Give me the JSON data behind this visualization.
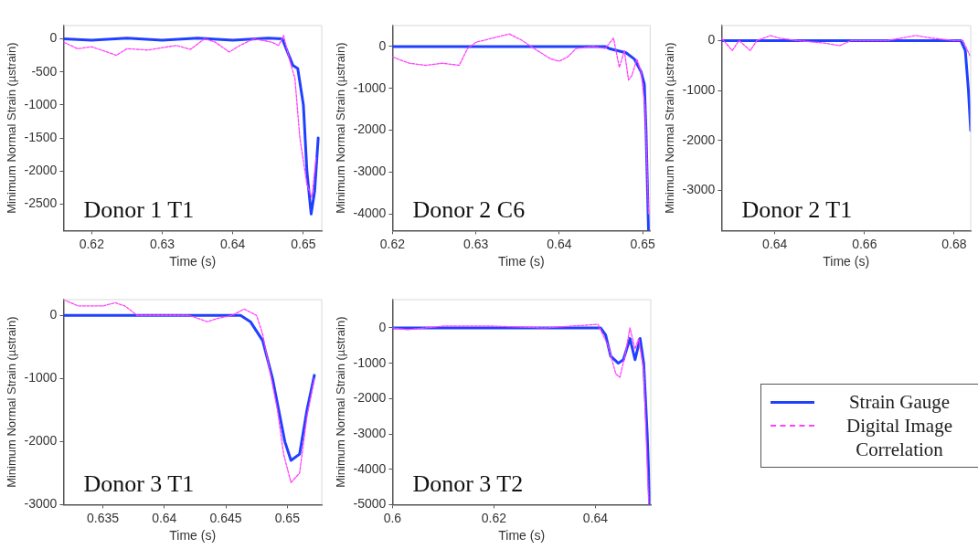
{
  "chart_data": [
    {
      "type": "line",
      "xlabel": "Time (s)",
      "ylabel": "Minimum Normal Strain (µstrain)",
      "annotations": [
        "Donor 1 T1"
      ],
      "xlim": [
        0.616,
        0.6526
      ],
      "xticks": [
        0.62,
        0.63,
        0.64,
        0.65
      ],
      "ylim": [
        -2900,
        200
      ],
      "yticks": [
        0,
        -500,
        -1000,
        -1500,
        -2000,
        -2500
      ],
      "grid": false,
      "legend": false,
      "marker": "none",
      "series": [
        {
          "color": "#2040ff",
          "line_style": "solid",
          "x": [
            0.616,
            0.62,
            0.625,
            0.63,
            0.635,
            0.64,
            0.645,
            0.647,
            0.6485,
            0.6492,
            0.65,
            0.6505,
            0.6511,
            0.6516,
            0.6521
          ],
          "values": [
            0,
            -20,
            10,
            -20,
            10,
            -20,
            10,
            0,
            -400,
            -450,
            -1000,
            -2000,
            -2650,
            -2300,
            -1500
          ]
        },
        {
          "color": "#ff40ff",
          "line_style": "dashed",
          "x": [
            0.616,
            0.618,
            0.62,
            0.6235,
            0.625,
            0.628,
            0.632,
            0.634,
            0.636,
            0.6375,
            0.6395,
            0.641,
            0.643,
            0.6455,
            0.6465,
            0.6472,
            0.648,
            0.6488,
            0.6495,
            0.6505,
            0.6512,
            0.6518
          ],
          "values": [
            -50,
            -150,
            -120,
            -250,
            -150,
            -170,
            -100,
            -160,
            0,
            -50,
            -200,
            -100,
            0,
            -50,
            -100,
            50,
            -300,
            -600,
            -1500,
            -2200,
            -2400,
            -1800
          ]
        }
      ]
    },
    {
      "type": "line",
      "xlabel": "Time (s)",
      "ylabel": "Minimum Normal Strain (µstrain)",
      "annotations": [
        "Donor 2 C6"
      ],
      "xlim": [
        0.62,
        0.6509
      ],
      "xticks": [
        0.62,
        0.63,
        0.64,
        0.65
      ],
      "ylim": [
        -4400,
        500
      ],
      "yticks": [
        0,
        -1000,
        -2000,
        -3000,
        -4000
      ],
      "grid": false,
      "legend": false,
      "marker": "none",
      "series": [
        {
          "color": "#2040ff",
          "line_style": "solid",
          "x": [
            0.62,
            0.63,
            0.64,
            0.6455,
            0.646,
            0.648,
            0.649,
            0.6498,
            0.6502,
            0.6504,
            0.6507
          ],
          "values": [
            0,
            0,
            0,
            0,
            -50,
            -150,
            -300,
            -600,
            -900,
            -2000,
            -4400
          ]
        },
        {
          "color": "#ff40ff",
          "line_style": "dashed",
          "x": [
            0.62,
            0.622,
            0.624,
            0.626,
            0.628,
            0.629,
            0.63,
            0.632,
            0.634,
            0.6355,
            0.637,
            0.639,
            0.64,
            0.641,
            0.642,
            0.644,
            0.6455,
            0.6465,
            0.6472,
            0.6478,
            0.6483,
            0.6487,
            0.6493,
            0.6498,
            0.6503,
            0.6507
          ],
          "values": [
            -250,
            -400,
            -450,
            -400,
            -450,
            -50,
            100,
            200,
            300,
            150,
            -50,
            -300,
            -350,
            -250,
            -50,
            0,
            -50,
            200,
            -500,
            -100,
            -800,
            -700,
            -300,
            -600,
            -1500,
            -4000
          ]
        }
      ]
    },
    {
      "type": "line",
      "xlabel": "Time (s)",
      "ylabel": "Minimum Normal Strain (µstrain)",
      "annotations": [
        "Donor 2 T1"
      ],
      "xlim": [
        0.6281,
        0.6837
      ],
      "xticks": [
        0.64,
        0.66,
        0.68
      ],
      "ylim": [
        -3800,
        300
      ],
      "yticks": [
        0,
        -1000,
        -2000,
        -3000
      ],
      "grid": false,
      "legend": false,
      "marker": "none",
      "series": [
        {
          "color": "#2040ff",
          "line_style": "solid",
          "x": [
            0.6281,
            0.65,
            0.67,
            0.6815,
            0.6825,
            0.6832,
            0.6837
          ],
          "values": [
            0,
            0,
            0,
            0,
            -200,
            -1000,
            -1800
          ]
        },
        {
          "color": "#ff40ff",
          "line_style": "dashed",
          "x": [
            0.6281,
            0.6305,
            0.632,
            0.6345,
            0.636,
            0.639,
            0.641,
            0.645,
            0.651,
            0.6545,
            0.657,
            0.665,
            0.6715,
            0.675,
            0.68,
            0.682,
            0.6835
          ],
          "values": [
            50,
            -200,
            0,
            -200,
            0,
            100,
            50,
            0,
            -50,
            -100,
            0,
            0,
            100,
            50,
            0,
            0,
            -300
          ]
        }
      ]
    },
    {
      "type": "line",
      "xlabel": "Time (s)",
      "ylabel": "Minimum Normal Strain (µstrain)",
      "annotations": [
        "Donor 3 T1"
      ],
      "xlim": [
        0.6318,
        0.6528
      ],
      "xticks": [
        0.635,
        0.64,
        0.645,
        0.65
      ],
      "ylim": [
        -3000,
        250
      ],
      "yticks": [
        0,
        -1000,
        -2000,
        -3000
      ],
      "grid": false,
      "legend": false,
      "marker": "none",
      "series": [
        {
          "color": "#2040ff",
          "line_style": "solid",
          "x": [
            0.6318,
            0.638,
            0.644,
            0.6462,
            0.647,
            0.648,
            0.6488,
            0.6493,
            0.6498,
            0.6503,
            0.651,
            0.6516,
            0.6522
          ],
          "values": [
            0,
            0,
            0,
            0,
            -100,
            -400,
            -1000,
            -1500,
            -2000,
            -2300,
            -2200,
            -1500,
            -950
          ]
        },
        {
          "color": "#ff40ff",
          "line_style": "dashed",
          "x": [
            0.6318,
            0.633,
            0.635,
            0.636,
            0.6368,
            0.6378,
            0.64,
            0.642,
            0.6435,
            0.6443,
            0.6455,
            0.6465,
            0.6475,
            0.648,
            0.6487,
            0.6492,
            0.6497,
            0.6503,
            0.651,
            0.6516,
            0.6522
          ],
          "values": [
            250,
            150,
            150,
            200,
            150,
            0,
            0,
            0,
            -100,
            -50,
            0,
            100,
            0,
            -300,
            -1000,
            -1500,
            -2200,
            -2650,
            -2500,
            -1600,
            -1000
          ]
        }
      ]
    },
    {
      "type": "line",
      "xlabel": "Time (s)",
      "ylabel": "Minimum Normal Strain (µstrain)",
      "annotations": [
        "Donor 3 T2"
      ],
      "xlim": [
        0.6,
        0.6509
      ],
      "xticks": [
        0.6,
        0.62,
        0.64
      ],
      "ylim": [
        -5000,
        800
      ],
      "yticks": [
        0,
        -1000,
        -2000,
        -3000,
        -4000,
        -5000
      ],
      "grid": false,
      "legend": "right",
      "marker": "none",
      "series": [
        {
          "name": "Strain Gauge",
          "color": "#2040ff",
          "line_style": "solid",
          "x": [
            0.6,
            0.62,
            0.635,
            0.641,
            0.642,
            0.643,
            0.6445,
            0.6455,
            0.6468,
            0.6478,
            0.6488,
            0.6495,
            0.6502,
            0.6507
          ],
          "values": [
            0,
            0,
            0,
            0,
            -200,
            -800,
            -1000,
            -900,
            -300,
            -900,
            -300,
            -1000,
            -3000,
            -5000
          ]
        },
        {
          "name": "Digital Image Correlation",
          "color": "#ff40ff",
          "line_style": "dashed",
          "x": [
            0.6,
            0.603,
            0.61,
            0.62,
            0.63,
            0.6405,
            0.6425,
            0.644,
            0.6448,
            0.6458,
            0.6468,
            0.6478,
            0.6485,
            0.6495,
            0.6505
          ],
          "values": [
            0,
            -50,
            50,
            50,
            0,
            100,
            -500,
            -1300,
            -1400,
            -800,
            0,
            -600,
            -300,
            -1200,
            -5000
          ]
        }
      ]
    }
  ]
}
